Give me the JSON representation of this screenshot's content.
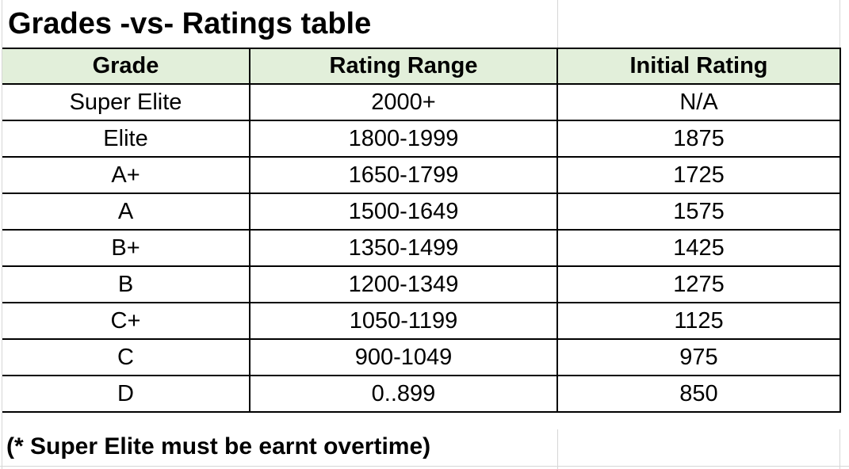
{
  "title": "Grades -vs- Ratings table",
  "footnote": "(* Super Elite must be earnt overtime)",
  "colors": {
    "header_bg": "#e2efda",
    "cell_border": "#000000",
    "gridline": "#d6d6d6",
    "text": "#000000"
  },
  "table": {
    "columns": [
      "Grade",
      "Rating Range",
      "Initial Rating"
    ],
    "rows": [
      {
        "grade": "Super Elite",
        "range": "2000+",
        "initial": "N/A"
      },
      {
        "grade": "Elite",
        "range": "1800-1999",
        "initial": "1875"
      },
      {
        "grade": "A+",
        "range": "1650-1799",
        "initial": "1725"
      },
      {
        "grade": "A",
        "range": "1500-1649",
        "initial": "1575"
      },
      {
        "grade": "B+",
        "range": "1350-1499",
        "initial": "1425"
      },
      {
        "grade": "B",
        "range": "1200-1349",
        "initial": "1275"
      },
      {
        "grade": "C+",
        "range": "1050-1199",
        "initial": "1125"
      },
      {
        "grade": "C",
        "range": "900-1049",
        "initial": "975"
      },
      {
        "grade": "D",
        "range": "0..899",
        "initial": "850"
      }
    ]
  }
}
